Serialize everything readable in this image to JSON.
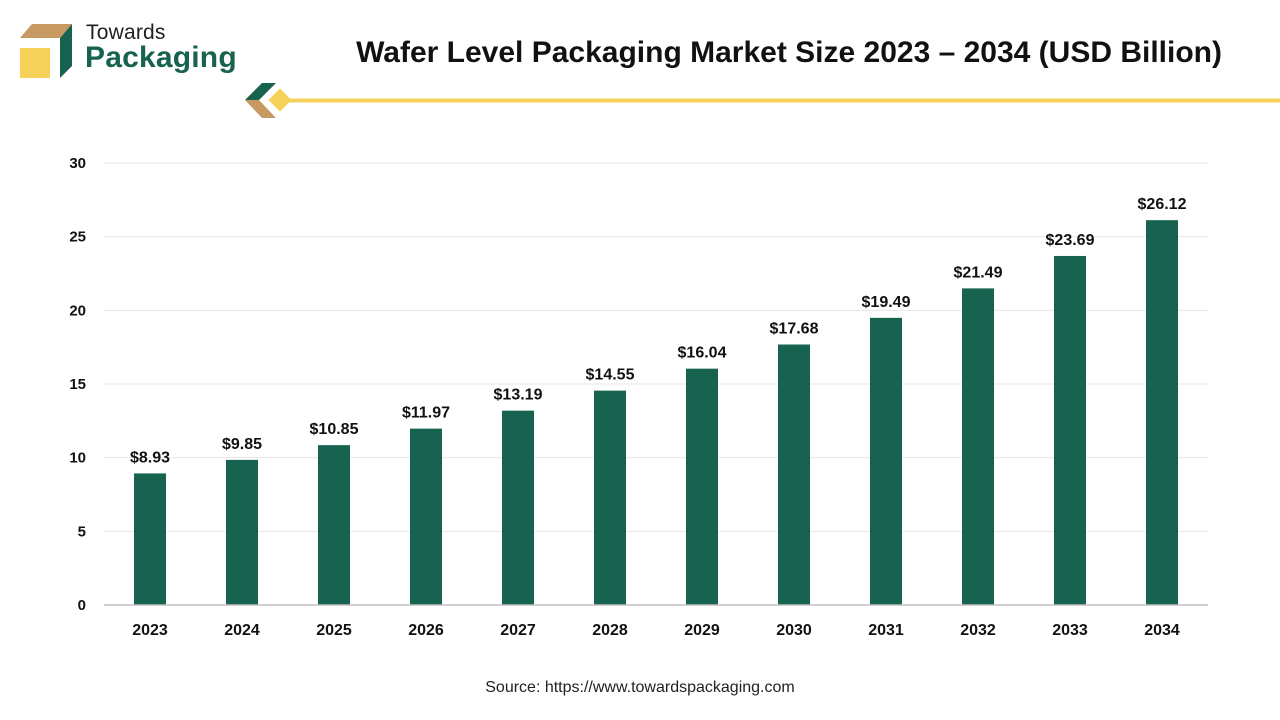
{
  "brand": {
    "line1": "Towards",
    "line2": "Packaging",
    "colors": {
      "green": "#17634f",
      "tan": "#c79a63",
      "yellow": "#f6d15a"
    }
  },
  "title": "Wafer Level Packaging Market Size 2023 – 2034 (USD Billion)",
  "source": "Source: https://www.towardspackaging.com",
  "chart_data": {
    "type": "bar",
    "categories": [
      "2023",
      "2024",
      "2025",
      "2026",
      "2027",
      "2028",
      "2029",
      "2030",
      "2031",
      "2032",
      "2033",
      "2034"
    ],
    "values": [
      8.93,
      9.85,
      10.85,
      11.97,
      13.19,
      14.55,
      16.04,
      17.68,
      19.49,
      21.49,
      23.69,
      26.12
    ],
    "data_labels": [
      "$8.93",
      "$9.85",
      "$10.85",
      "$11.97",
      "$13.19",
      "$14.55",
      "$16.04",
      "$17.68",
      "$19.49",
      "$21.49",
      "$23.69",
      "$26.12"
    ],
    "title": "Wafer Level Packaging Market Size 2023 – 2034 (USD Billion)",
    "xlabel": "",
    "ylabel": "",
    "ylim": [
      0,
      30
    ],
    "yticks": [
      0,
      5,
      10,
      15,
      20,
      25,
      30
    ],
    "grid": true,
    "legend": "none",
    "bar_color": "#17634f",
    "grid_color": "#e6e6e6",
    "axis_color": "#bfbfbf"
  }
}
